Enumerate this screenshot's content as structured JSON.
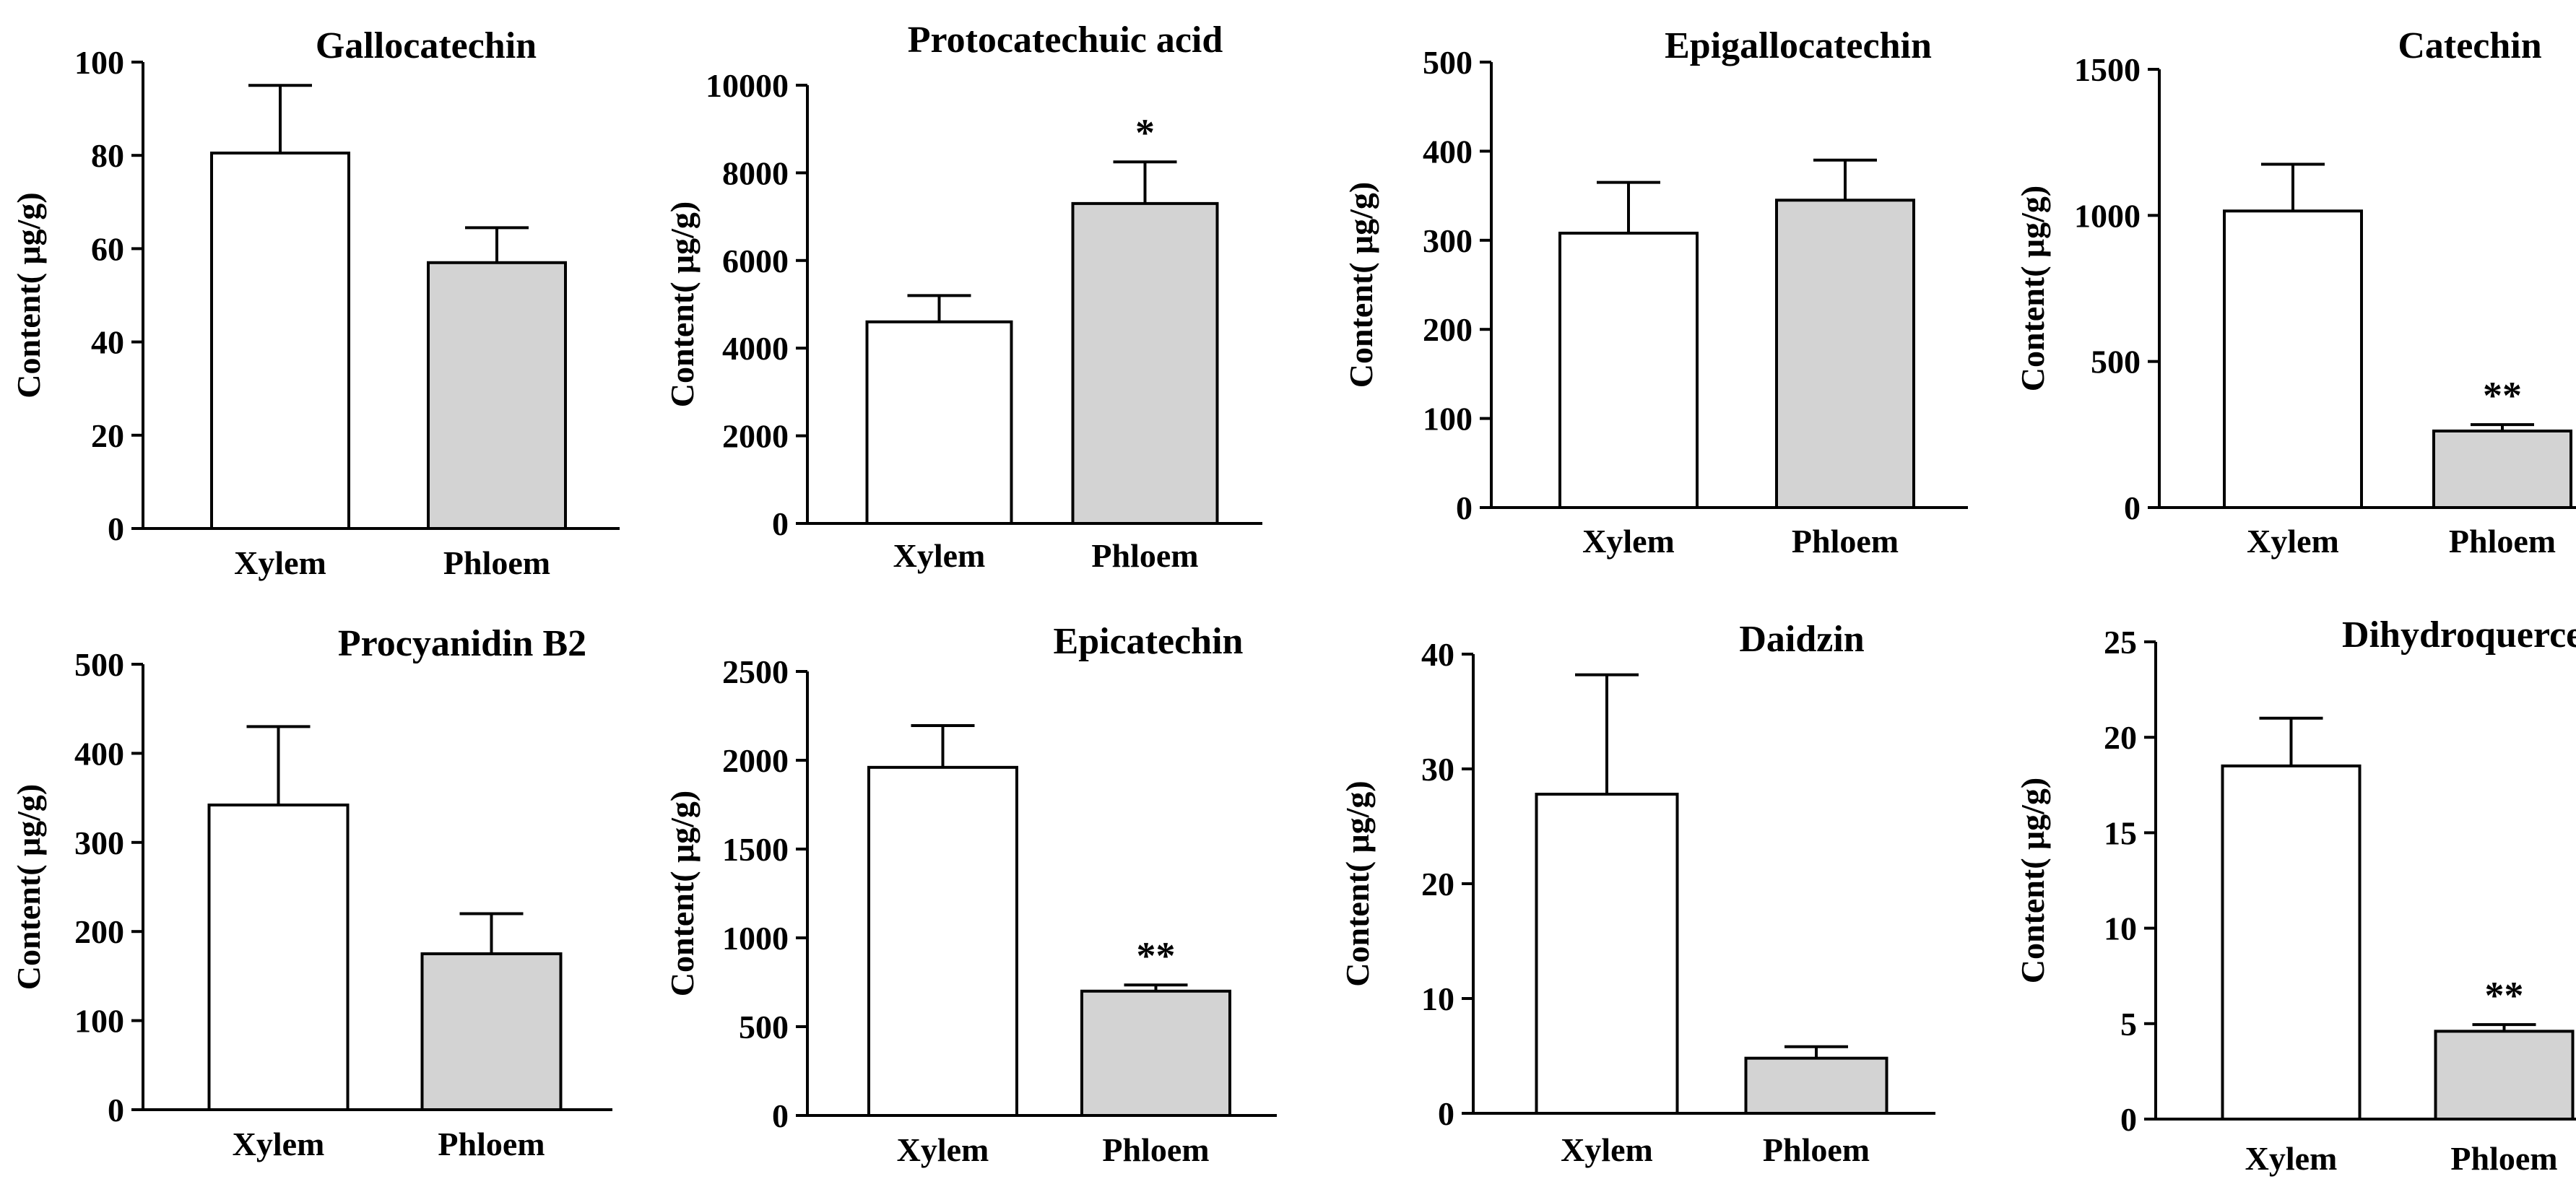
{
  "figure": {
    "background": "#ffffff",
    "colors": {
      "xylem": "#ffffff",
      "phloem": "#d3d3d3",
      "stroke": "#000000"
    }
  },
  "chart_data": [
    {
      "type": "bar",
      "title": "Gallocatechin",
      "ylabel": "Content( μg/g)",
      "xlabel": "",
      "categories": [
        "Xylem",
        "Phloem"
      ],
      "values": [
        80.5,
        57
      ],
      "errors": [
        14.5,
        7.5
      ],
      "significance": [
        "",
        ""
      ],
      "ylim": [
        0,
        100
      ],
      "yticks": [
        0,
        20,
        40,
        60,
        80,
        100
      ],
      "ytick_labels": [
        "0",
        "20",
        "40",
        "60",
        "80",
        "100"
      ]
    },
    {
      "type": "bar",
      "title": "Protocatechuic acid",
      "ylabel": "Content( μg/g)",
      "xlabel": "",
      "categories": [
        "Xylem",
        "Phloem"
      ],
      "values": [
        4600,
        7300
      ],
      "errors": [
        600,
        950
      ],
      "significance": [
        "",
        "*"
      ],
      "ylim": [
        0,
        10000
      ],
      "yticks": [
        0,
        2000,
        4000,
        6000,
        8000,
        10000
      ],
      "ytick_labels": [
        "0",
        "2000",
        "4000",
        "6000",
        "8000",
        "10000"
      ]
    },
    {
      "type": "bar",
      "title": "Epigallocatechin",
      "ylabel": "Content( μg/g)",
      "xlabel": "",
      "categories": [
        "Xylem",
        "Phloem"
      ],
      "values": [
        308,
        345
      ],
      "errors": [
        57,
        45
      ],
      "significance": [
        "",
        ""
      ],
      "ylim": [
        0,
        500
      ],
      "yticks": [
        0,
        100,
        200,
        300,
        400,
        500
      ],
      "ytick_labels": [
        "0",
        "100",
        "200",
        "300",
        "400",
        "500"
      ]
    },
    {
      "type": "bar",
      "title": "Catechin",
      "ylabel": "Content( μg/g)",
      "xlabel": "",
      "categories": [
        "Xylem",
        "Phloem"
      ],
      "values": [
        1015,
        262
      ],
      "errors": [
        160,
        22
      ],
      "significance": [
        "",
        "**"
      ],
      "ylim": [
        0,
        1500
      ],
      "yticks": [
        0,
        500,
        1000,
        1500
      ],
      "ytick_labels": [
        "0",
        "500",
        "1000",
        "1500"
      ]
    },
    {
      "type": "bar",
      "title": "Procyanidin B2",
      "ylabel": "Content( μg/g)",
      "xlabel": "",
      "categories": [
        "Xylem",
        "Phloem"
      ],
      "values": [
        342,
        175
      ],
      "errors": [
        88,
        45
      ],
      "significance": [
        "",
        ""
      ],
      "ylim": [
        0,
        500
      ],
      "yticks": [
        0,
        100,
        200,
        300,
        400,
        500
      ],
      "ytick_labels": [
        "0",
        "100",
        "200",
        "300",
        "400",
        "500"
      ]
    },
    {
      "type": "bar",
      "title": "Epicatechin",
      "ylabel": "Content( μg/g)",
      "xlabel": "",
      "categories": [
        "Xylem",
        "Phloem"
      ],
      "values": [
        1960,
        700
      ],
      "errors": [
        235,
        35
      ],
      "significance": [
        "",
        "**"
      ],
      "ylim": [
        0,
        2500
      ],
      "yticks": [
        0,
        500,
        1000,
        1500,
        2000,
        2500
      ],
      "ytick_labels": [
        "0",
        "500",
        "1000",
        "1500",
        "2000",
        "2500"
      ]
    },
    {
      "type": "bar",
      "title": "Daidzin",
      "ylabel": "Content( μg/g)",
      "xlabel": "",
      "categories": [
        "Xylem",
        "Phloem"
      ],
      "values": [
        27.8,
        4.8
      ],
      "errors": [
        10.4,
        1.0
      ],
      "significance": [
        "",
        ""
      ],
      "ylim": [
        0,
        40
      ],
      "yticks": [
        0,
        10,
        20,
        30,
        40
      ],
      "ytick_labels": [
        "0",
        "10",
        "20",
        "30",
        "40"
      ]
    },
    {
      "type": "bar",
      "title": "Dihydroquercetin",
      "ylabel": "Content( μg/g)",
      "xlabel": "",
      "categories": [
        "Xylem",
        "Phloem"
      ],
      "values": [
        18.5,
        4.6
      ],
      "errors": [
        2.5,
        0.35
      ],
      "significance": [
        "",
        "**"
      ],
      "ylim": [
        0,
        25
      ],
      "yticks": [
        0,
        5,
        10,
        15,
        20,
        25
      ],
      "ytick_labels": [
        "0",
        "5",
        "10",
        "15",
        "20",
        "25"
      ]
    }
  ]
}
